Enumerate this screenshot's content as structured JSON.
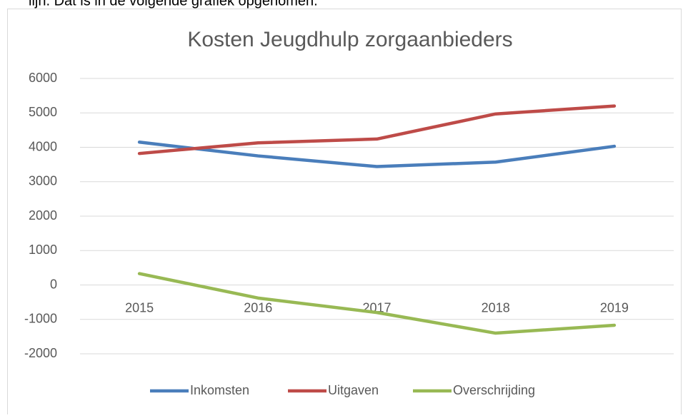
{
  "page_text": "lijn. Dat is in de volgende grafiek opgenomen.",
  "chart_data": {
    "type": "line",
    "title": "Kosten Jeugdhulp zorgaanbieders",
    "categories": [
      "2015",
      "2016",
      "2017",
      "2018",
      "2019"
    ],
    "series": [
      {
        "name": "Inkomsten",
        "color": "#4a7ebb",
        "values": [
          4150,
          3750,
          3440,
          3570,
          4030
        ]
      },
      {
        "name": "Uitgaven",
        "color": "#be4b48",
        "values": [
          3820,
          4130,
          4240,
          4970,
          5200
        ]
      },
      {
        "name": "Overschrijding",
        "color": "#98b954",
        "values": [
          330,
          -380,
          -800,
          -1400,
          -1170
        ]
      }
    ],
    "ylim": [
      -2000,
      6000
    ],
    "yticks": [
      -2000,
      -1000,
      0,
      1000,
      2000,
      3000,
      4000,
      5000,
      6000
    ],
    "grid": true,
    "legend": "bottom"
  }
}
